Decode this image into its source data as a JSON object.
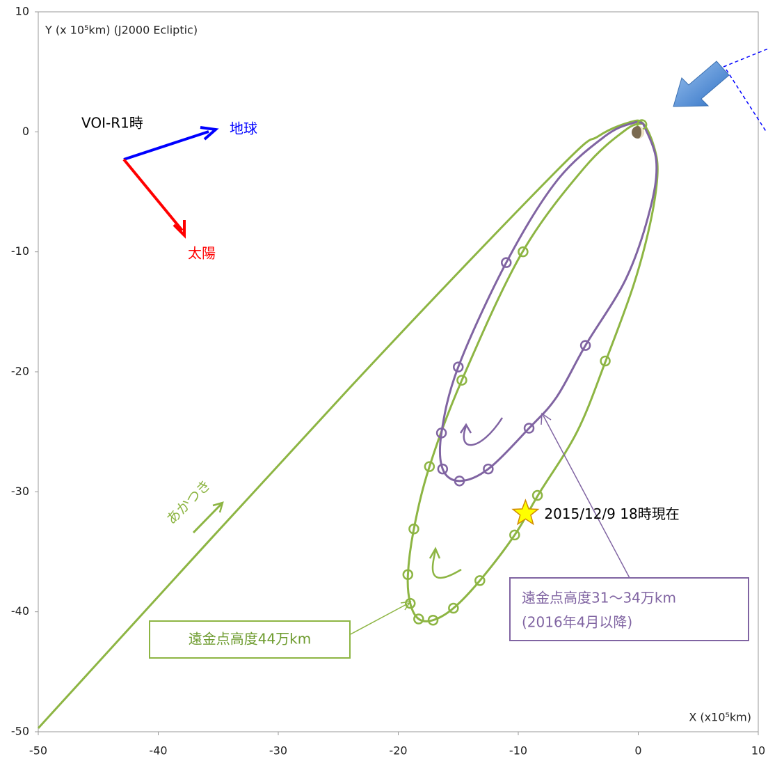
{
  "chart_data": {
    "type": "scatter",
    "x_label": "X (x10⁵km)",
    "y_label": "Y (x 10⁵km) (J2000 Ecliptic)",
    "xlim": [
      -50,
      10
    ],
    "ylim": [
      -50,
      10
    ],
    "xticks": [
      -50,
      -40,
      -30,
      -20,
      -10,
      0,
      10
    ],
    "yticks": [
      -50,
      -40,
      -30,
      -20,
      -10,
      0,
      10
    ],
    "series": [
      {
        "color": "#8db543",
        "mode": "lines",
        "x": [
          -50,
          -24.2,
          -6.8,
          -3.3,
          -0.7,
          0.4,
          1.3,
          1.6,
          1.0,
          -0.4,
          -2.75,
          -5.1,
          -8.3,
          -10.3,
          -13.2,
          -15.4,
          -17.1,
          -18.3,
          -19.0,
          -19.2,
          -18.7,
          -17.4,
          -14.7,
          -9.7,
          -4.5,
          -1.0,
          0.4
        ],
        "values": [
          -49.7,
          -21.5,
          -3.25,
          -0.35,
          0.8,
          0.7,
          -1.2,
          -3.5,
          -7.6,
          -12.8,
          -19.2,
          -25,
          -30.2,
          -33.6,
          -37.4,
          -39.7,
          -40.7,
          -40.6,
          -39.3,
          -37.0,
          -33.1,
          -27.9,
          -20.7,
          -10.1,
          -3.0,
          0.2,
          0.7
        ]
      },
      {
        "color": "#8db543",
        "mode": "markers",
        "x": [
          0.3,
          -9.6,
          -2.75,
          -14.7,
          -17.4,
          -8.4,
          -18.7,
          -10.3,
          -19.2,
          -13.2,
          -19.0,
          -15.4,
          -18.3,
          -17.1
        ],
        "values": [
          0.6,
          -10.0,
          -19.1,
          -20.7,
          -27.9,
          -30.3,
          -33.1,
          -33.6,
          -36.9,
          -37.4,
          -39.3,
          -39.7,
          -40.6,
          -40.7
        ]
      },
      {
        "color": "#8064a2",
        "mode": "lines",
        "x": [
          0.4,
          1.5,
          1.0,
          -1.0,
          -4.4,
          -6.8,
          -9.1,
          -12.5,
          -14.9,
          -16.3,
          -16.4,
          -15.0,
          -11.0,
          -6.8,
          -2.75,
          -0.4,
          0.4
        ],
        "values": [
          0.7,
          -2.4,
          -6.4,
          -12.2,
          -17.8,
          -22.1,
          -24.7,
          -28.1,
          -29.1,
          -28.1,
          -25.1,
          -19.6,
          -10.9,
          -4.1,
          -0.35,
          0.75,
          0.7
        ]
      },
      {
        "color": "#8064a2",
        "mode": "markers",
        "x": [
          -15.0,
          -11.0,
          -4.4,
          -9.1,
          -12.5,
          -14.9,
          -16.3,
          -16.4
        ],
        "values": [
          -19.6,
          -10.9,
          -17.8,
          -24.7,
          -28.1,
          -29.1,
          -28.1,
          -25.1
        ]
      }
    ],
    "current_position": {
      "x": -9.4,
      "y": -31.8,
      "label": "2015/12/9 18時現在"
    },
    "annotations": {
      "voi": "VOI-R1時",
      "earth": "地球",
      "sun": "太陽",
      "akatsuki": "あかつき",
      "purple_box": [
        "遠金点高度31～34万km",
        "(2016年4月以降)"
      ],
      "green_box": "遠金点高度44万km"
    }
  }
}
